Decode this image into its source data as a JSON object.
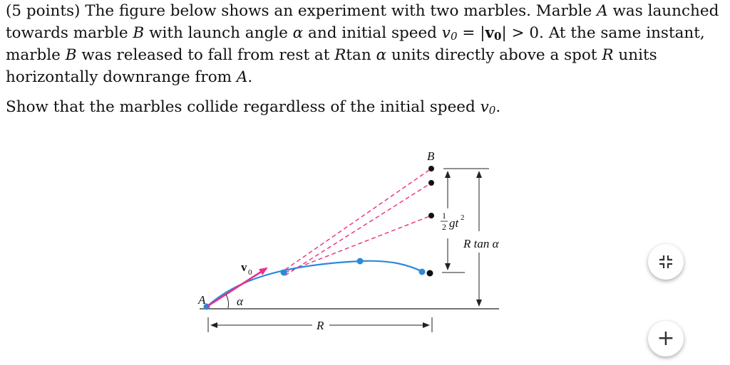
{
  "problem": {
    "intro": "(5 points) The figure below shows an experiment with two marbles. Marble",
    "marble_a": "A",
    "was_launched": "was launched towards marble",
    "marble_b": "B",
    "with_angle": "with launch angle",
    "alpha": "α",
    "and_speed": "and initial speed",
    "v0_italic": "v",
    "sub0": "0",
    "equals": " = |",
    "v_bold": "v",
    "sub0b": "0",
    "gt_zero": "| > 0. At the same instant, marble",
    "marble_b2": "B",
    "was_released": "was released to fall from rest at",
    "r_tan": "R",
    "tan_word": "tan",
    "alpha2": "α",
    "units_directly": "units directly above a spot",
    "r_units": "R",
    "units_downrange": "units horizontally downrange from",
    "marble_a2": "A",
    "period": ".",
    "show_text": "Show that the marbles collide regardless of the initial speed",
    "show_v": "v",
    "show_sub": "0",
    "show_period": "."
  },
  "figure": {
    "label_a": "A",
    "label_b": "B",
    "label_alpha": "α",
    "label_v": "v",
    "label_v_sub": "0",
    "label_r": "R",
    "label_half_num": "1",
    "label_half_den": "2",
    "label_gt": "gt",
    "label_gt_exp": "2",
    "label_rtan": "R tan α",
    "colors": {
      "trajectory": "#2b8ad9",
      "dashed": "#ea3a8a",
      "arrow": "#e8318a",
      "ink": "#222222"
    }
  },
  "controls": {
    "collapse_icon": "collapse-icon",
    "zoom_label": "+"
  }
}
